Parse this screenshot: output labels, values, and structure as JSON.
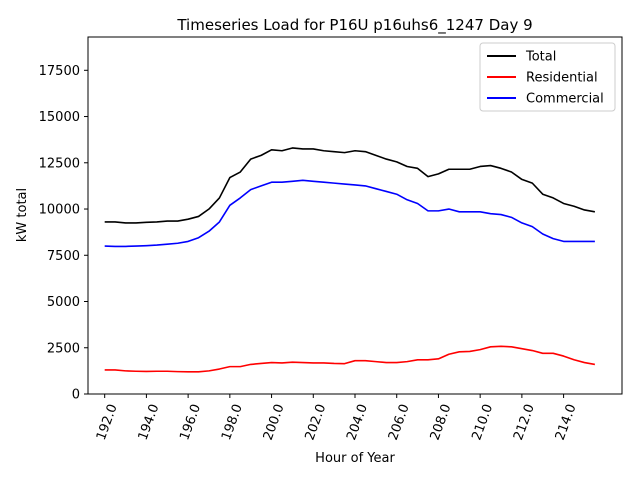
{
  "chart_data": {
    "type": "line",
    "title": "Timeseries Load for P16U p16uhs6_1247  Day 9",
    "xlabel": "Hour of Year",
    "ylabel": "kW total",
    "xlim": [
      191.2,
      216.8
    ],
    "ylim": [
      0,
      19300
    ],
    "xticks": [
      192,
      194,
      196,
      198,
      200,
      202,
      204,
      206,
      208,
      210,
      212,
      214
    ],
    "xtick_labels": [
      "192.0",
      "194.0",
      "196.0",
      "198.0",
      "200.0",
      "202.0",
      "204.0",
      "206.0",
      "208.0",
      "210.0",
      "212.0",
      "214.0"
    ],
    "yticks": [
      0,
      2500,
      5000,
      7500,
      10000,
      12500,
      15000,
      17500
    ],
    "ytick_labels": [
      "0",
      "2500",
      "5000",
      "7500",
      "10000",
      "12500",
      "15000",
      "17500"
    ],
    "grid": false,
    "legend_position": "top-right",
    "x": [
      192.0,
      192.5,
      193.0,
      193.5,
      194.0,
      194.5,
      195.0,
      195.5,
      196.0,
      196.5,
      197.0,
      197.5,
      198.0,
      198.5,
      199.0,
      199.5,
      200.0,
      200.5,
      201.0,
      201.5,
      202.0,
      202.5,
      203.0,
      203.5,
      204.0,
      204.5,
      205.0,
      205.5,
      206.0,
      206.5,
      207.0,
      207.5,
      208.0,
      208.5,
      209.0,
      209.5,
      210.0,
      210.5,
      211.0,
      211.5,
      212.0,
      212.5,
      213.0,
      213.5,
      214.0,
      214.5,
      215.0,
      215.5
    ],
    "series": [
      {
        "name": "Total",
        "color": "#000000",
        "values": [
          9300,
          9300,
          9250,
          9250,
          9280,
          9300,
          9350,
          9350,
          9450,
          9600,
          10000,
          10600,
          11700,
          12000,
          12700,
          12900,
          13200,
          13150,
          13300,
          13250,
          13250,
          13150,
          13100,
          13050,
          13150,
          13100,
          12900,
          12700,
          12550,
          12300,
          12200,
          11750,
          11900,
          12150,
          12150,
          12150,
          12300,
          12350,
          12200,
          12000,
          11600,
          11400,
          10800,
          10600,
          10300,
          10150,
          9950,
          9850
        ]
      },
      {
        "name": "Residential",
        "color": "#ff0000",
        "values": [
          1300,
          1300,
          1250,
          1230,
          1220,
          1230,
          1230,
          1210,
          1200,
          1200,
          1250,
          1350,
          1480,
          1480,
          1600,
          1650,
          1700,
          1680,
          1720,
          1700,
          1680,
          1680,
          1650,
          1640,
          1800,
          1800,
          1750,
          1700,
          1700,
          1750,
          1850,
          1850,
          1900,
          2150,
          2280,
          2300,
          2400,
          2550,
          2580,
          2550,
          2450,
          2350,
          2200,
          2200,
          2050,
          1850,
          1700,
          1600
        ]
      },
      {
        "name": "Commercial",
        "color": "#0000ff",
        "values": [
          8000,
          7980,
          7980,
          8000,
          8020,
          8050,
          8100,
          8150,
          8250,
          8450,
          8800,
          9300,
          10200,
          10600,
          11050,
          11250,
          11450,
          11450,
          11500,
          11550,
          11500,
          11450,
          11400,
          11350,
          11300,
          11250,
          11100,
          10950,
          10800,
          10500,
          10300,
          9900,
          9900,
          10000,
          9850,
          9850,
          9850,
          9750,
          9700,
          9550,
          9250,
          9050,
          8650,
          8400,
          8250,
          8250,
          8250,
          8250
        ]
      }
    ]
  }
}
